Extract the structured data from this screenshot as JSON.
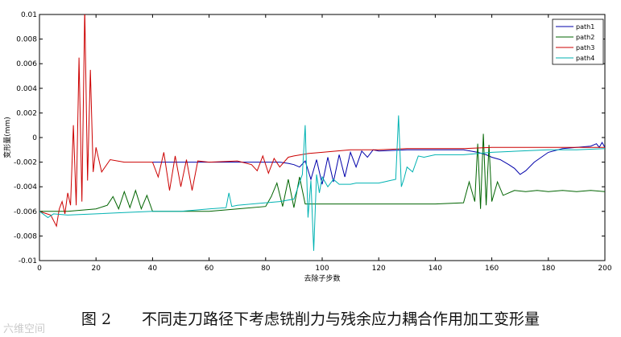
{
  "caption": "图 2　　不同走刀路径下考虑铣削力与残余应力耦合作用加工变形量",
  "watermark": "六维空间",
  "chart_data": {
    "type": "line",
    "xlabel": "去除子步数",
    "ylabel": "变形量(mm)",
    "xlim": [
      0,
      200
    ],
    "ylim": [
      -0.01,
      0.01
    ],
    "xticks": [
      "0",
      "20",
      "40",
      "60",
      "80",
      "100",
      "120",
      "140",
      "160",
      "180",
      "200"
    ],
    "yticks": [
      "0.01",
      "0.008",
      "0.006",
      "0.004",
      "0.002",
      "0",
      "-0.002",
      "-0.004",
      "-0.006",
      "-0.008",
      "-0.01"
    ],
    "grid": false,
    "legend_position": "top-right",
    "series": [
      {
        "name": "path1",
        "color": "#0000aa",
        "x": [
          40,
          60,
          75,
          85,
          88,
          90,
          92,
          94,
          96,
          98,
          100,
          102,
          104,
          106,
          108,
          110,
          112,
          114,
          116,
          118,
          120,
          130,
          140,
          150,
          155,
          158,
          160,
          163,
          166,
          168,
          170,
          172,
          175,
          180,
          185,
          190,
          195,
          197,
          198,
          199,
          200
        ],
        "y": [
          -0.002,
          -0.002,
          -0.002,
          -0.002,
          -0.0021,
          -0.0022,
          -0.0024,
          -0.0019,
          -0.0034,
          -0.0018,
          -0.0038,
          -0.0016,
          -0.0036,
          -0.0014,
          -0.0032,
          -0.0012,
          -0.0024,
          -0.0011,
          -0.0016,
          -0.001,
          -0.0011,
          -0.001,
          -0.001,
          -0.001,
          -0.0012,
          -0.0014,
          -0.0016,
          -0.0018,
          -0.0022,
          -0.0025,
          -0.003,
          -0.0027,
          -0.002,
          -0.0012,
          -0.0009,
          -0.0008,
          -0.0007,
          -0.0005,
          -0.0008,
          -0.0004,
          -0.0008
        ]
      },
      {
        "name": "path2",
        "color": "#006400",
        "x": [
          0,
          10,
          20,
          24,
          26,
          28,
          30,
          32,
          34,
          36,
          38,
          40,
          50,
          60,
          70,
          80,
          82,
          84,
          86,
          88,
          90,
          92,
          94,
          100,
          120,
          140,
          150,
          152,
          154,
          155,
          156,
          157,
          158,
          159,
          160,
          162,
          164,
          168,
          172,
          176,
          180,
          185,
          190,
          195,
          200
        ],
        "y": [
          -0.006,
          -0.006,
          -0.0058,
          -0.0055,
          -0.0048,
          -0.0058,
          -0.0044,
          -0.0057,
          -0.0043,
          -0.0058,
          -0.0047,
          -0.006,
          -0.006,
          -0.006,
          -0.0058,
          -0.0056,
          -0.0048,
          -0.0037,
          -0.0056,
          -0.0034,
          -0.0057,
          -0.0032,
          -0.0054,
          -0.0054,
          -0.0054,
          -0.0054,
          -0.0053,
          -0.0036,
          -0.0052,
          -0.0005,
          -0.0058,
          0.0003,
          -0.0055,
          -0.0006,
          -0.0052,
          -0.0036,
          -0.0047,
          -0.0043,
          -0.0044,
          -0.0043,
          -0.0044,
          -0.0043,
          -0.0044,
          -0.0043,
          -0.0044
        ]
      },
      {
        "name": "path3",
        "color": "#cc0000",
        "x": [
          0,
          4,
          6,
          7,
          8,
          9,
          10,
          11,
          12,
          13,
          14,
          15,
          16,
          17,
          18,
          19,
          20,
          22,
          25,
          30,
          40,
          42,
          44,
          46,
          48,
          50,
          52,
          54,
          56,
          60,
          70,
          75,
          77,
          79,
          81,
          83,
          85,
          88,
          90,
          95,
          100,
          110,
          120,
          130,
          140,
          150,
          160,
          170,
          180,
          190,
          200
        ],
        "y": [
          -0.006,
          -0.0063,
          -0.0072,
          -0.0058,
          -0.0052,
          -0.0062,
          -0.0045,
          -0.0055,
          0.001,
          -0.0055,
          0.0065,
          -0.0052,
          0.0105,
          -0.0035,
          0.0055,
          -0.0028,
          -0.0008,
          -0.0028,
          -0.0018,
          -0.002,
          -0.002,
          -0.0032,
          -0.0012,
          -0.0043,
          -0.0015,
          -0.004,
          -0.0018,
          -0.0043,
          -0.0019,
          -0.002,
          -0.0019,
          -0.0022,
          -0.0027,
          -0.0015,
          -0.0029,
          -0.0017,
          -0.0024,
          -0.0016,
          -0.0015,
          -0.0013,
          -0.0012,
          -0.001,
          -0.001,
          -0.0009,
          -0.0009,
          -0.0009,
          -0.0008,
          -0.0008,
          -0.0008,
          -0.0008,
          -0.0008
        ]
      },
      {
        "name": "path4",
        "color": "#00b2b2",
        "x": [
          0,
          3,
          5,
          10,
          20,
          30,
          40,
          50,
          60,
          66,
          67,
          68,
          70,
          80,
          85,
          90,
          93,
          94,
          95,
          96,
          97,
          98,
          99,
          100,
          102,
          104,
          106,
          108,
          110,
          112,
          114,
          116,
          118,
          120,
          122,
          124,
          126,
          127,
          128,
          129,
          130,
          132,
          134,
          136,
          140,
          150,
          160,
          170,
          180,
          190,
          200
        ],
        "y": [
          -0.006,
          -0.0065,
          -0.0062,
          -0.0063,
          -0.0062,
          -0.0061,
          -0.006,
          -0.006,
          -0.0058,
          -0.0057,
          -0.0045,
          -0.0056,
          -0.0055,
          -0.0053,
          -0.0052,
          -0.005,
          -0.003,
          0.001,
          -0.0065,
          -0.0035,
          -0.0092,
          -0.003,
          -0.0045,
          -0.0032,
          -0.004,
          -0.0034,
          -0.0038,
          -0.0038,
          -0.0038,
          -0.0037,
          -0.0037,
          -0.0037,
          -0.0037,
          -0.0037,
          -0.0036,
          -0.0035,
          -0.0034,
          0.0018,
          -0.004,
          -0.0033,
          -0.0024,
          -0.0028,
          -0.0015,
          -0.0016,
          -0.0014,
          -0.0014,
          -0.0012,
          -0.0011,
          -0.001,
          -0.001,
          -0.0009
        ]
      }
    ]
  }
}
